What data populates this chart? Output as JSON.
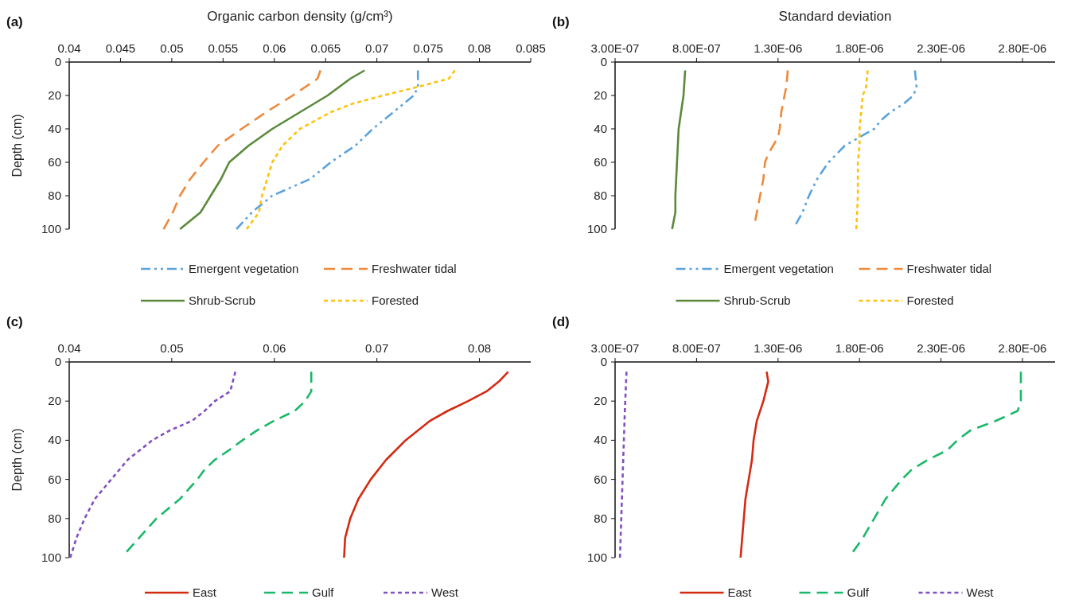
{
  "chart_data": [
    {
      "type": "line",
      "title": "(a)",
      "xlabel": "Organic carbon density (g/cm³)",
      "ylabel": "Depth (cm)",
      "xlim": [
        0.04,
        0.085
      ],
      "xticks": [
        0.04,
        0.045,
        0.05,
        0.055,
        0.06,
        0.065,
        0.07,
        0.075,
        0.08,
        0.085
      ],
      "ylim": [
        100,
        0
      ],
      "yticks": [
        0,
        20,
        40,
        60,
        80,
        100
      ],
      "legend": "bottom",
      "grid": false,
      "series": [
        {
          "name": "Emergent vegetation",
          "color": "#5ba3dc",
          "line_style": "dashdot",
          "x": [
            0.074,
            0.074,
            0.0736,
            0.0726,
            0.0716,
            0.0696,
            0.0679,
            0.0655,
            0.0635,
            0.0598,
            0.0578,
            0.0563
          ],
          "values": [
            5,
            15,
            20,
            25,
            30,
            40,
            50,
            60,
            70,
            80,
            90,
            100
          ]
        },
        {
          "name": "Freshwater tidal",
          "color": "#ed8a3c",
          "line_style": "dashed",
          "x": [
            0.0645,
            0.0642,
            0.0618,
            0.0592,
            0.0568,
            0.0545,
            0.0531,
            0.0518,
            0.0508,
            0.0501,
            0.0492
          ],
          "values": [
            5,
            10,
            20,
            30,
            40,
            50,
            60,
            70,
            80,
            90,
            100
          ]
        },
        {
          "name": "Shrub-Scrub",
          "color": "#5a8a3a",
          "line_style": "solid",
          "x": [
            0.0688,
            0.0674,
            0.0652,
            0.0625,
            0.0598,
            0.0575,
            0.0556,
            0.0548,
            0.0538,
            0.0528,
            0.0518,
            0.0508
          ],
          "values": [
            5,
            10,
            20,
            30,
            40,
            50,
            60,
            70,
            80,
            90,
            95,
            100
          ]
        },
        {
          "name": "Forested",
          "color": "#fcc30b",
          "line_style": "dotted",
          "x": [
            0.0776,
            0.077,
            0.0739,
            0.0706,
            0.0676,
            0.0655,
            0.0625,
            0.0608,
            0.0598,
            0.0593,
            0.0588,
            0.0585,
            0.0573
          ],
          "values": [
            5,
            10,
            15,
            20,
            25,
            30,
            40,
            50,
            60,
            70,
            80,
            90,
            100
          ]
        }
      ]
    },
    {
      "type": "line",
      "title": "(b)",
      "xlabel": "Standard deviation",
      "xlim": [
        3e-07,
        3e-06
      ],
      "xticks": [
        {
          "value": 3e-07,
          "label": "3.00E-07"
        },
        {
          "value": 8e-07,
          "label": "8.00E-07"
        },
        {
          "value": 1.3e-06,
          "label": "1.30E-06"
        },
        {
          "value": 1.8e-06,
          "label": "1.80E-06"
        },
        {
          "value": 2.3e-06,
          "label": "2.30E-06"
        },
        {
          "value": 2.8e-06,
          "label": "2.80E-06"
        }
      ],
      "ylim": [
        100,
        0
      ],
      "yticks": [
        0,
        20,
        40,
        60,
        80,
        100
      ],
      "legend": "bottom",
      "grid": false,
      "series": [
        {
          "name": "Emergent vegetation",
          "color": "#5ba3dc",
          "line_style": "dashdot",
          "x": [
            2.14e-06,
            2.15e-06,
            2.13e-06,
            2.07e-06,
            1.99e-06,
            1.93e-06,
            1.89e-06,
            1.8e-06,
            1.71e-06,
            1.61e-06,
            1.54e-06,
            1.49e-06,
            1.45e-06,
            1.41e-06
          ],
          "values": [
            5,
            15,
            20,
            25,
            30,
            35,
            40,
            45,
            50,
            60,
            70,
            80,
            90,
            97
          ]
        },
        {
          "name": "Freshwater tidal",
          "color": "#ed8a3c",
          "line_style": "dashed",
          "x": [
            1.36e-06,
            1.35e-06,
            1.34e-06,
            1.32e-06,
            1.31e-06,
            1.3e-06,
            1.27e-06,
            1.24e-06,
            1.22e-06,
            1.21e-06,
            1.19e-06,
            1.16e-06
          ],
          "values": [
            5,
            15,
            20,
            30,
            40,
            45,
            50,
            55,
            60,
            70,
            80,
            95
          ]
        },
        {
          "name": "Shrub-Scrub",
          "color": "#5a8a3a",
          "line_style": "solid",
          "x": [
            7.3e-07,
            7.2e-07,
            6.9e-07,
            6.8e-07,
            6.7e-07,
            6.7e-07,
            6.5e-07
          ],
          "values": [
            5,
            20,
            40,
            60,
            80,
            90,
            100
          ]
        },
        {
          "name": "Forested",
          "color": "#fcc30b",
          "line_style": "dotted",
          "x": [
            1.85e-06,
            1.84e-06,
            1.82e-06,
            1.81e-06,
            1.8e-06,
            1.8e-06,
            1.79e-06,
            1.79e-06,
            1.78e-06
          ],
          "values": [
            5,
            15,
            20,
            30,
            40,
            50,
            60,
            80,
            100
          ]
        }
      ]
    },
    {
      "type": "line",
      "title": "(c)",
      "ylabel": "Depth (cm)",
      "xlim": [
        0.04,
        0.085
      ],
      "xticks": [
        0.04,
        0.05,
        0.06,
        0.07,
        0.08
      ],
      "ylim": [
        100,
        0
      ],
      "yticks": [
        0,
        20,
        40,
        60,
        80,
        100
      ],
      "legend": "bottom",
      "grid": false,
      "series": [
        {
          "name": "East",
          "color": "#d42a12",
          "line_style": "solid",
          "x": [
            0.0828,
            0.0819,
            0.0807,
            0.0789,
            0.0769,
            0.0752,
            0.0728,
            0.0709,
            0.0694,
            0.0682,
            0.0674,
            0.0669,
            0.0668
          ],
          "values": [
            5,
            10,
            15,
            20,
            25,
            30,
            40,
            50,
            60,
            70,
            80,
            90,
            100
          ]
        },
        {
          "name": "Gulf",
          "color": "#1bb86a",
          "line_style": "dashed",
          "x": [
            0.0636,
            0.0636,
            0.063,
            0.062,
            0.06,
            0.0583,
            0.0569,
            0.0556,
            0.0542,
            0.0532,
            0.0525,
            0.0508,
            0.0485,
            0.0468,
            0.0456
          ],
          "values": [
            5,
            15,
            20,
            25,
            30,
            35,
            40,
            45,
            50,
            55,
            60,
            70,
            80,
            90,
            97
          ]
        },
        {
          "name": "West",
          "color": "#8150c0",
          "line_style": "dotted",
          "x": [
            0.0562,
            0.0557,
            0.0542,
            0.0532,
            0.052,
            0.0498,
            0.0481,
            0.0457,
            0.0441,
            0.0425,
            0.0415,
            0.0407,
            0.0401
          ],
          "values": [
            5,
            15,
            20,
            25,
            30,
            35,
            40,
            50,
            60,
            70,
            80,
            90,
            100
          ]
        }
      ]
    },
    {
      "type": "line",
      "title": "(d)",
      "xlim": [
        3e-07,
        3e-06
      ],
      "xticks": [
        {
          "value": 3e-07,
          "label": "3.00E-07"
        },
        {
          "value": 8e-07,
          "label": "8.00E-07"
        },
        {
          "value": 1.3e-06,
          "label": "1.30E-06"
        },
        {
          "value": 1.8e-06,
          "label": "1.80E-06"
        },
        {
          "value": 2.3e-06,
          "label": "2.30E-06"
        },
        {
          "value": 2.8e-06,
          "label": "2.80E-06"
        }
      ],
      "ylim": [
        100,
        0
      ],
      "yticks": [
        0,
        20,
        40,
        60,
        80,
        100
      ],
      "legend": "bottom",
      "grid": false,
      "series": [
        {
          "name": "East",
          "color": "#d42a12",
          "line_style": "solid",
          "x": [
            1.23e-06,
            1.24e-06,
            1.21e-06,
            1.17e-06,
            1.15e-06,
            1.14e-06,
            1.12e-06,
            1.1e-06,
            1.09e-06,
            1.08e-06,
            1.07e-06
          ],
          "values": [
            5,
            10,
            20,
            30,
            40,
            50,
            60,
            70,
            80,
            90,
            100
          ]
        },
        {
          "name": "Gulf",
          "color": "#1bb86a",
          "line_style": "dashed",
          "x": [
            2.79e-06,
            2.79e-06,
            2.77e-06,
            2.64e-06,
            2.48e-06,
            2.4e-06,
            2.34e-06,
            2.22e-06,
            2.12e-06,
            2.06e-06,
            1.96e-06,
            1.89e-06,
            1.82e-06,
            1.76e-06
          ],
          "values": [
            5,
            20,
            25,
            30,
            35,
            40,
            45,
            50,
            55,
            60,
            70,
            80,
            90,
            97
          ]
        },
        {
          "name": "West",
          "color": "#8150c0",
          "line_style": "dotted",
          "x": [
            3.7e-07,
            3.6e-07,
            3.5e-07,
            3.4e-07,
            3.3e-07
          ],
          "values": [
            5,
            25,
            50,
            75,
            100
          ]
        }
      ]
    }
  ]
}
